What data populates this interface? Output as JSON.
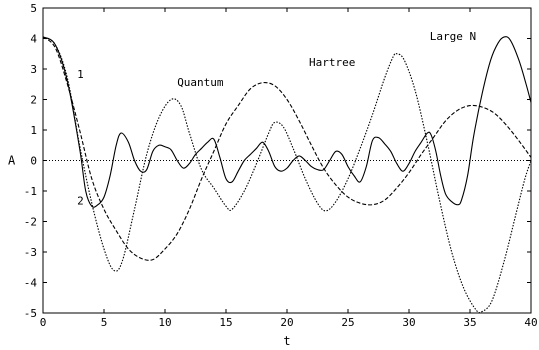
{
  "chart_data": {
    "type": "line",
    "xlabel": "t",
    "ylabel": "A",
    "xlim": [
      0,
      40
    ],
    "ylim": [
      -5,
      5
    ],
    "xticks": [
      0,
      5,
      10,
      15,
      20,
      25,
      30,
      35,
      40
    ],
    "yticks": [
      -5,
      -4,
      -3,
      -2,
      -1,
      0,
      1,
      2,
      3,
      4,
      5
    ],
    "grid": false,
    "zero_line": true,
    "annotations": [
      {
        "text": "1",
        "x": 2.8,
        "y": 2.7
      },
      {
        "text": "2",
        "x": 2.8,
        "y": -1.45
      },
      {
        "text": "Quantum",
        "x": 11.0,
        "y": 2.45
      },
      {
        "text": "Hartree",
        "x": 21.8,
        "y": 3.1
      },
      {
        "text": "Large N",
        "x": 31.7,
        "y": 3.95
      }
    ],
    "series": [
      {
        "name": "Large N",
        "style": "solid",
        "points": [
          [
            0,
            4.05
          ],
          [
            1,
            3.8
          ],
          [
            2,
            2.6
          ],
          [
            3,
            0.4
          ],
          [
            3.5,
            -1.0
          ],
          [
            4,
            -1.5
          ],
          [
            4.5,
            -1.45
          ],
          [
            5,
            -1.2
          ],
          [
            5.5,
            -0.5
          ],
          [
            6,
            0.5
          ],
          [
            6.4,
            0.9
          ],
          [
            7,
            0.6
          ],
          [
            7.5,
            0.0
          ],
          [
            8,
            -0.35
          ],
          [
            8.5,
            -0.3
          ],
          [
            9,
            0.3
          ],
          [
            9.5,
            0.5
          ],
          [
            10,
            0.45
          ],
          [
            10.5,
            0.35
          ],
          [
            11,
            0.0
          ],
          [
            11.5,
            -0.25
          ],
          [
            12,
            -0.1
          ],
          [
            12.5,
            0.2
          ],
          [
            13,
            0.4
          ],
          [
            13.5,
            0.6
          ],
          [
            14,
            0.7
          ],
          [
            14.5,
            0.1
          ],
          [
            15,
            -0.6
          ],
          [
            15.5,
            -0.7
          ],
          [
            16,
            -0.35
          ],
          [
            16.5,
            0.0
          ],
          [
            17,
            0.2
          ],
          [
            17.5,
            0.4
          ],
          [
            18,
            0.6
          ],
          [
            18.5,
            0.3
          ],
          [
            19,
            -0.2
          ],
          [
            19.5,
            -0.35
          ],
          [
            20,
            -0.25
          ],
          [
            20.5,
            0.0
          ],
          [
            21,
            0.15
          ],
          [
            21.5,
            0.0
          ],
          [
            22,
            -0.2
          ],
          [
            22.5,
            -0.3
          ],
          [
            23,
            -0.3
          ],
          [
            23.5,
            0.0
          ],
          [
            24,
            0.3
          ],
          [
            24.5,
            0.2
          ],
          [
            25,
            -0.2
          ],
          [
            25.5,
            -0.5
          ],
          [
            26,
            -0.7
          ],
          [
            26.5,
            -0.2
          ],
          [
            27,
            0.65
          ],
          [
            27.5,
            0.75
          ],
          [
            28,
            0.55
          ],
          [
            28.5,
            0.3
          ],
          [
            29,
            -0.1
          ],
          [
            29.5,
            -0.35
          ],
          [
            30,
            -0.1
          ],
          [
            30.5,
            0.3
          ],
          [
            31,
            0.6
          ],
          [
            31.5,
            0.9
          ],
          [
            31.8,
            0.85
          ],
          [
            32.2,
            0.3
          ],
          [
            32.6,
            -0.5
          ],
          [
            33,
            -1.1
          ],
          [
            33.5,
            -1.35
          ],
          [
            34,
            -1.45
          ],
          [
            34.3,
            -1.3
          ],
          [
            34.8,
            -0.5
          ],
          [
            35.3,
            0.8
          ],
          [
            36,
            2.2
          ],
          [
            36.7,
            3.3
          ],
          [
            37.3,
            3.85
          ],
          [
            37.8,
            4.05
          ],
          [
            38.3,
            3.95
          ],
          [
            39,
            3.3
          ],
          [
            39.6,
            2.5
          ],
          [
            40,
            1.9
          ]
        ]
      },
      {
        "name": "Quantum",
        "style": "dashed",
        "points": [
          [
            0,
            4.05
          ],
          [
            1,
            3.7
          ],
          [
            2,
            2.5
          ],
          [
            3,
            1.0
          ],
          [
            4,
            -0.6
          ],
          [
            5,
            -1.6
          ],
          [
            6,
            -2.3
          ],
          [
            7,
            -2.9
          ],
          [
            8,
            -3.2
          ],
          [
            9,
            -3.25
          ],
          [
            10,
            -2.9
          ],
          [
            11,
            -2.4
          ],
          [
            12,
            -1.6
          ],
          [
            13,
            -0.6
          ],
          [
            14,
            0.3
          ],
          [
            15,
            1.2
          ],
          [
            16,
            1.8
          ],
          [
            17,
            2.35
          ],
          [
            18,
            2.55
          ],
          [
            19,
            2.45
          ],
          [
            20,
            2.0
          ],
          [
            21,
            1.3
          ],
          [
            22,
            0.5
          ],
          [
            23,
            -0.25
          ],
          [
            24,
            -0.8
          ],
          [
            25,
            -1.2
          ],
          [
            26,
            -1.4
          ],
          [
            27,
            -1.45
          ],
          [
            28,
            -1.3
          ],
          [
            29,
            -0.9
          ],
          [
            30,
            -0.4
          ],
          [
            31,
            0.2
          ],
          [
            32,
            0.75
          ],
          [
            33,
            1.3
          ],
          [
            34,
            1.65
          ],
          [
            35,
            1.8
          ],
          [
            36,
            1.75
          ],
          [
            37,
            1.55
          ],
          [
            38,
            1.15
          ],
          [
            39,
            0.65
          ],
          [
            40,
            0.1
          ]
        ]
      },
      {
        "name": "Hartree",
        "style": "dotted",
        "points": [
          [
            0,
            4.05
          ],
          [
            1,
            3.8
          ],
          [
            2,
            2.7
          ],
          [
            3,
            0.5
          ],
          [
            4,
            -1.4
          ],
          [
            5,
            -2.9
          ],
          [
            5.8,
            -3.6
          ],
          [
            6.5,
            -3.3
          ],
          [
            7.5,
            -1.6
          ],
          [
            8.5,
            0.2
          ],
          [
            9.5,
            1.4
          ],
          [
            10.5,
            2.0
          ],
          [
            11.3,
            1.8
          ],
          [
            12,
            0.9
          ],
          [
            13,
            -0.3
          ],
          [
            14,
            -0.9
          ],
          [
            15,
            -1.5
          ],
          [
            15.5,
            -1.6
          ],
          [
            16.5,
            -1.0
          ],
          [
            17.5,
            -0.1
          ],
          [
            18.5,
            0.9
          ],
          [
            19,
            1.25
          ],
          [
            19.7,
            1.1
          ],
          [
            20.5,
            0.4
          ],
          [
            21.5,
            -0.6
          ],
          [
            22.5,
            -1.4
          ],
          [
            23.2,
            -1.65
          ],
          [
            24,
            -1.35
          ],
          [
            25,
            -0.6
          ],
          [
            26,
            0.4
          ],
          [
            27,
            1.5
          ],
          [
            28,
            2.7
          ],
          [
            28.7,
            3.4
          ],
          [
            29,
            3.5
          ],
          [
            29.6,
            3.3
          ],
          [
            30.5,
            2.3
          ],
          [
            31.5,
            0.6
          ],
          [
            32.5,
            -1.3
          ],
          [
            33.5,
            -3.0
          ],
          [
            34.5,
            -4.2
          ],
          [
            35.5,
            -4.9
          ],
          [
            36,
            -4.95
          ],
          [
            36.8,
            -4.6
          ],
          [
            37.8,
            -3.3
          ],
          [
            38.8,
            -1.7
          ],
          [
            39.5,
            -0.6
          ],
          [
            40,
            0.0
          ]
        ]
      }
    ]
  }
}
